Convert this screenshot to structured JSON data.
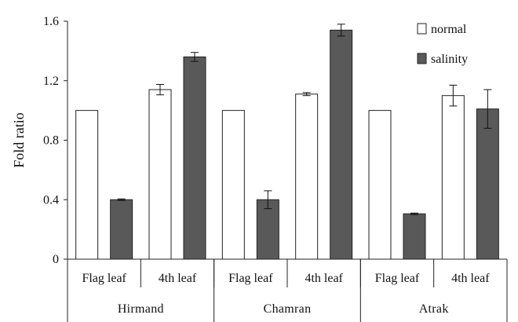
{
  "chart_data": {
    "type": "bar",
    "ylabel": "Fold ratio",
    "ylim": [
      0,
      1.6
    ],
    "yticks": [
      "0",
      "0.4",
      "0.8",
      "1.2",
      "1.6"
    ],
    "ytick_values": [
      0,
      0.4,
      0.8,
      1.2,
      1.6
    ],
    "categories": [
      "Flag leaf",
      "4th leaf",
      "Flag leaf",
      "4th leaf",
      "Flag leaf",
      "4th leaf"
    ],
    "groups": [
      "Hirmand",
      "Chamran",
      "Atrak"
    ],
    "legend_position": "top-right",
    "grid": false,
    "series": [
      {
        "name": "normal",
        "color": "#ffffff",
        "values": [
          1.0,
          1.14,
          1.0,
          1.11,
          1.0,
          1.1
        ],
        "errors": [
          0,
          0.035,
          0,
          0.01,
          0,
          0.07
        ]
      },
      {
        "name": "salinity",
        "color": "#595959",
        "values": [
          0.4,
          1.36,
          0.4,
          1.54,
          0.305,
          1.01
        ],
        "errors": [
          0.005,
          0.03,
          0.06,
          0.04,
          0.005,
          0.13
        ]
      }
    ]
  }
}
